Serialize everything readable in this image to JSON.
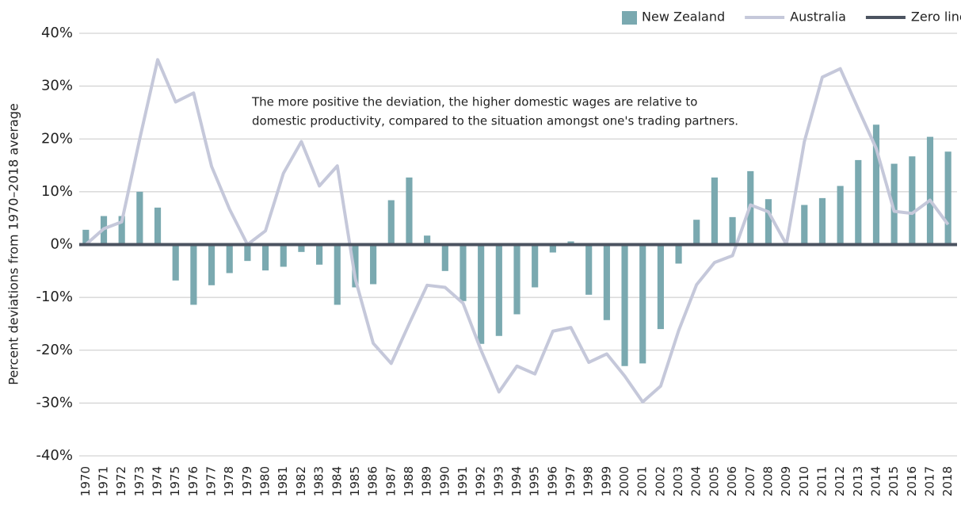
{
  "chart_data": {
    "type": "bar-line",
    "y_label": "Percent deviations from 1970–2018 average",
    "annotation": [
      "The more positive the deviation, the higher domestic wages are relative to",
      "domestic productivity, compared to the situation amongst one's trading partners."
    ],
    "categories": [
      "1970",
      "1971",
      "1972",
      "1973",
      "1974",
      "1975",
      "1976",
      "1977",
      "1978",
      "1979",
      "1980",
      "1981",
      "1982",
      "1983",
      "1984",
      "1985",
      "1986",
      "1987",
      "1988",
      "1989",
      "1990",
      "1991",
      "1992",
      "1993",
      "1994",
      "1995",
      "1996",
      "1997",
      "1998",
      "1999",
      "2000",
      "2001",
      "2002",
      "2003",
      "2004",
      "2005",
      "2006",
      "2007",
      "2008",
      "2009",
      "2010",
      "2011",
      "2012",
      "2013",
      "2014",
      "2015",
      "2016",
      "2017",
      "2018"
    ],
    "series": [
      {
        "name": "New Zealand",
        "type": "bar",
        "color": "#7aa9b0",
        "values": [
          2.8,
          5.4,
          5.4,
          10,
          7,
          -6.8,
          -11.4,
          -7.7,
          -5.4,
          -3.1,
          -4.9,
          -4.2,
          -1.4,
          -3.8,
          -11.4,
          -8.1,
          -7.5,
          8.4,
          12.7,
          1.7,
          -5,
          -10.7,
          -18.8,
          -17.3,
          -13.2,
          -8.1,
          -1.5,
          0.6,
          -9.5,
          -14.3,
          -23,
          -22.5,
          -16,
          -3.6,
          4.7,
          12.7,
          5.2,
          13.9,
          8.6,
          0,
          7.5,
          8.8,
          11.1,
          16,
          22.7,
          15.3,
          16.7,
          20.4,
          17.6
        ]
      },
      {
        "name": "Australia",
        "type": "line",
        "color": "#c5c8da",
        "values": [
          0,
          3,
          4.3,
          20,
          35,
          27,
          28.7,
          14.8,
          6.7,
          0,
          2.6,
          13.5,
          19.5,
          11.1,
          14.9,
          -6.5,
          -18.7,
          -22.5,
          -15,
          -7.7,
          -8.1,
          -11.1,
          -20,
          -27.9,
          -23,
          -24.5,
          -16.4,
          -15.7,
          -22.3,
          -20.7,
          -24.9,
          -29.8,
          -26.8,
          -16.3,
          -7.6,
          -3.4,
          -2.1,
          7.5,
          6.2,
          0,
          19.5,
          31.7,
          33.3,
          25.7,
          18.2,
          6.3,
          5.9,
          8.4,
          3.8
        ]
      }
    ],
    "reference_line": {
      "name": "Zero line",
      "value": 0,
      "color": "#4b5360"
    },
    "ylim": [
      -40,
      40
    ],
    "yticks": [
      {
        "value": -40,
        "label": "-40%"
      },
      {
        "value": -30,
        "label": "-30%"
      },
      {
        "value": -20,
        "label": "-20%"
      },
      {
        "value": -10,
        "label": "-10%"
      },
      {
        "value": 0,
        "label": "0%"
      },
      {
        "value": 10,
        "label": "10%"
      },
      {
        "value": 20,
        "label": "20%"
      },
      {
        "value": 30,
        "label": "30%"
      },
      {
        "value": 40,
        "label": "40%"
      }
    ],
    "grid": true
  }
}
